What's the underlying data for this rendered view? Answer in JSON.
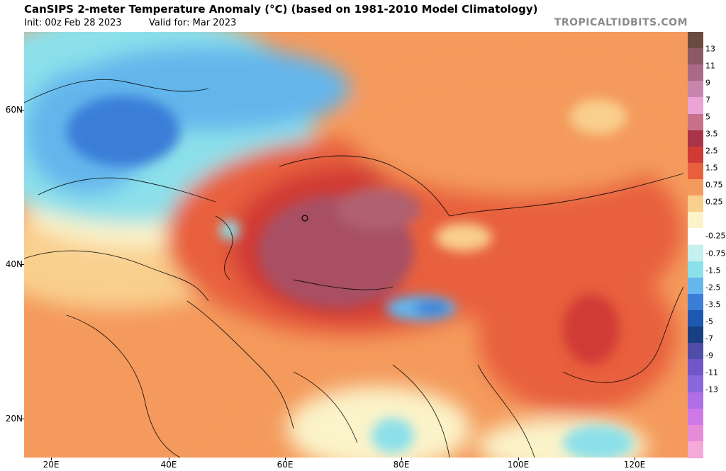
{
  "header": {
    "title": "CanSIPS 2-meter Temperature Anomaly (°C) (based on 1981-2010 Model Climatology)",
    "init": "Init: 00z Feb 28 2023",
    "valid": "Valid for: Mar 2023",
    "site": "TROPICALTIDBITS.COM"
  },
  "axes": {
    "lat_labels": [
      "60N",
      "40N",
      "20N"
    ],
    "lon_labels": [
      "20E",
      "40E",
      "60E",
      "80E",
      "100E",
      "120E"
    ]
  },
  "colorbar": {
    "labels": [
      "13",
      "11",
      "9",
      "7",
      "5",
      "3.5",
      "2.5",
      "1.5",
      "0.75",
      "0.25",
      "-0.25",
      "-0.75",
      "-1.5",
      "-2.5",
      "-3.5",
      "-5",
      "-7",
      "-9",
      "-11",
      "-13"
    ],
    "colors": [
      "#6b4a3f",
      "#8b5866",
      "#a96a86",
      "#c886ad",
      "#eaa4d6",
      "#c9708b",
      "#a93449",
      "#d03a35",
      "#e8603e",
      "#f49a5c",
      "#f9cf8d",
      "#fbf3c9",
      "#ffffff",
      "#c6f0ef",
      "#8ce0ea",
      "#64b6ec",
      "#3b7ed8",
      "#1f58b0",
      "#183f82",
      "#4f4da8",
      "#6f57c8",
      "#8a67dc",
      "#b06ee8",
      "#cf79e8",
      "#e68bd8",
      "#f4a9d6"
    ]
  },
  "map": {
    "region": "Asia / Middle East",
    "colors": {
      "neutral": "#fbf3c9",
      "warm_light": "#f9cf8d",
      "warm": "#f49a5c",
      "warm_mid": "#e8603e",
      "warm_strong": "#d03a35",
      "warm_max": "#a93449",
      "warm_peak": "#a94f64",
      "cool_light": "#8ce0ea",
      "cool": "#64b6ec",
      "cool_strong": "#3b7ed8",
      "neutral_white": "#ffffff"
    }
  }
}
